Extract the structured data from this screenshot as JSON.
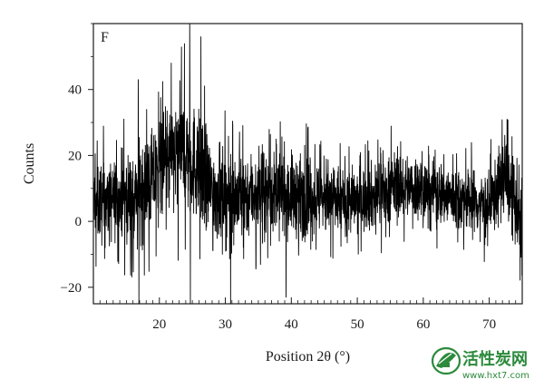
{
  "chart_data": {
    "type": "line",
    "panel_label": "F",
    "title": "",
    "xlabel": "Position 2θ (°)",
    "ylabel": "Counts",
    "xlim": [
      10,
      75
    ],
    "ylim": [
      -25,
      60
    ],
    "xticks": [
      20,
      30,
      40,
      50,
      60,
      70
    ],
    "yticks": [
      -20,
      0,
      20,
      40
    ],
    "series": [
      {
        "color": "#000000",
        "envelope_points": [
          {
            "x": 10,
            "mean": 6,
            "amplitude": 11
          },
          {
            "x": 13,
            "mean": 6,
            "amplitude": 11
          },
          {
            "x": 16,
            "mean": 8,
            "amplitude": 12
          },
          {
            "x": 18,
            "mean": 11,
            "amplitude": 13
          },
          {
            "x": 20,
            "mean": 15,
            "amplitude": 14
          },
          {
            "x": 22,
            "mean": 19,
            "amplitude": 15
          },
          {
            "x": 24,
            "mean": 21,
            "amplitude": 16
          },
          {
            "x": 26,
            "mean": 16,
            "amplitude": 15
          },
          {
            "x": 28,
            "mean": 9,
            "amplitude": 13
          },
          {
            "x": 31,
            "mean": 7,
            "amplitude": 12
          },
          {
            "x": 35,
            "mean": 9,
            "amplitude": 11
          },
          {
            "x": 40,
            "mean": 8,
            "amplitude": 11
          },
          {
            "x": 45,
            "mean": 7,
            "amplitude": 10
          },
          {
            "x": 50,
            "mean": 6,
            "amplitude": 9
          },
          {
            "x": 53,
            "mean": 8,
            "amplitude": 9
          },
          {
            "x": 56,
            "mean": 11,
            "amplitude": 9
          },
          {
            "x": 60,
            "mean": 10,
            "amplitude": 9
          },
          {
            "x": 65,
            "mean": 7,
            "amplitude": 9
          },
          {
            "x": 70,
            "mean": 5,
            "amplitude": 9
          },
          {
            "x": 72.5,
            "mean": 14,
            "amplitude": 11
          },
          {
            "x": 74,
            "mean": 5,
            "amplitude": 10
          },
          {
            "x": 75,
            "mean": -5,
            "amplitude": 10
          }
        ],
        "notable_spikes": [
          {
            "x": 16.8,
            "y": 43
          },
          {
            "x": 16.9,
            "y": -25
          },
          {
            "x": 21.8,
            "y": 48
          },
          {
            "x": 24.6,
            "y": 60
          },
          {
            "x": 24.7,
            "y": -25
          },
          {
            "x": 26.3,
            "y": 56
          },
          {
            "x": 30.8,
            "y": -25
          },
          {
            "x": 39.2,
            "y": -23
          },
          {
            "x": 72.7,
            "y": 31
          }
        ]
      }
    ]
  },
  "watermark": {
    "name": "活性炭网",
    "url": "www.hxt7.com",
    "color": "#2c8a3c"
  }
}
